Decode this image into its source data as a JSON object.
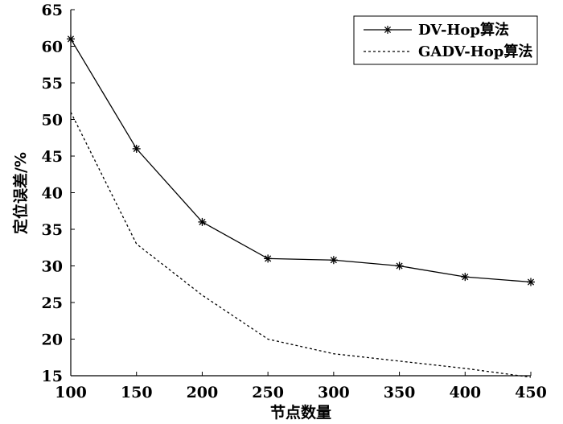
{
  "chart_data": {
    "type": "line",
    "xlabel": "节点数量",
    "ylabel": "定位误差/%",
    "xlim": [
      100,
      450
    ],
    "ylim": [
      15,
      65
    ],
    "x_ticks": [
      "100",
      "150",
      "200",
      "250",
      "300",
      "350",
      "400",
      "450"
    ],
    "y_ticks": [
      "15",
      "20",
      "25",
      "30",
      "35",
      "40",
      "45",
      "50",
      "55",
      "60",
      "65"
    ],
    "x": [
      100,
      150,
      200,
      250,
      300,
      350,
      400,
      450
    ],
    "series": [
      {
        "name": "DV-Hop算法",
        "style": "solid-star",
        "values": [
          61,
          46,
          36,
          31,
          30.8,
          30,
          28.5,
          27.8
        ]
      },
      {
        "name": "GADV-Hop算法",
        "style": "dashed",
        "values": [
          51,
          33,
          26,
          20,
          18,
          17,
          16,
          14.8
        ]
      }
    ],
    "legend_position": "top-right",
    "grid": false,
    "colors": {
      "line": "#000000",
      "background": "#ffffff"
    }
  }
}
